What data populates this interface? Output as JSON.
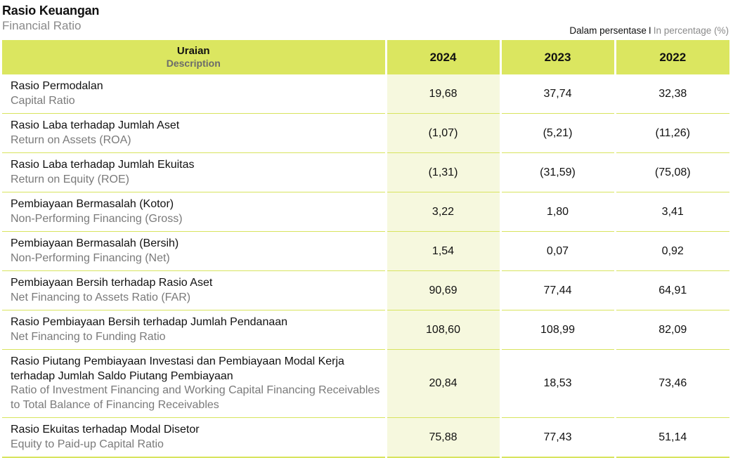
{
  "header": {
    "title_id": "Rasio Keuangan",
    "title_en": "Financial Ratio",
    "unit_id": "Dalam persentase",
    "unit_sep": "I",
    "unit_en": "In percentage (%)"
  },
  "table": {
    "desc_header_id": "Uraian",
    "desc_header_en": "Description",
    "years": [
      "2024",
      "2023",
      "2022"
    ],
    "rows": [
      {
        "label_id": "Rasio Permodalan",
        "label_en": "Capital Ratio",
        "values": [
          "19,68",
          "37,74",
          "32,38"
        ]
      },
      {
        "label_id": "Rasio Laba terhadap Jumlah Aset",
        "label_en": "Return on Assets (ROA)",
        "values": [
          "(1,07)",
          "(5,21)",
          "(11,26)"
        ]
      },
      {
        "label_id": "Rasio Laba terhadap Jumlah Ekuitas",
        "label_en": "Return on Equity (ROE)",
        "values": [
          "(1,31)",
          "(31,59)",
          "(75,08)"
        ]
      },
      {
        "label_id": "Pembiayaan Bermasalah (Kotor)",
        "label_en": "Non-Performing Financing (Gross)",
        "values": [
          "3,22",
          "1,80",
          "3,41"
        ]
      },
      {
        "label_id": "Pembiayaan Bermasalah (Bersih)",
        "label_en": "Non-Performing Financing (Net)",
        "values": [
          "1,54",
          "0,07",
          "0,92"
        ]
      },
      {
        "label_id": "Pembiayaan Bersih terhadap Rasio Aset",
        "label_en": "Net Financing to Assets Ratio (FAR)",
        "values": [
          "90,69",
          "77,44",
          "64,91"
        ]
      },
      {
        "label_id": "Rasio Pembiayaan Bersih terhadap Jumlah Pendanaan",
        "label_en": "Net Financing to Funding Ratio",
        "values": [
          "108,60",
          "108,99",
          "82,09"
        ]
      },
      {
        "label_id": "Rasio Piutang Pembiayaan Investasi dan Pembiayaan Modal Kerja terhadap Jumlah Saldo Piutang Pembiayaan",
        "label_en": "Ratio of Investment Financing and Working Capital Financing Receivables to Total Balance of Financing Receivables",
        "values": [
          "20,84",
          "18,53",
          "73,46"
        ]
      },
      {
        "label_id": "Rasio Ekuitas terhadap Modal Disetor",
        "label_en": "Equity to Paid-up Capital Ratio",
        "values": [
          "75,88",
          "77,43",
          "51,14"
        ]
      }
    ]
  },
  "colors": {
    "header_fill": "#dbe660",
    "highlight_column": "#f6f8de",
    "row_divider": "#d8e45e",
    "secondary_text": "#7a7a7a"
  }
}
